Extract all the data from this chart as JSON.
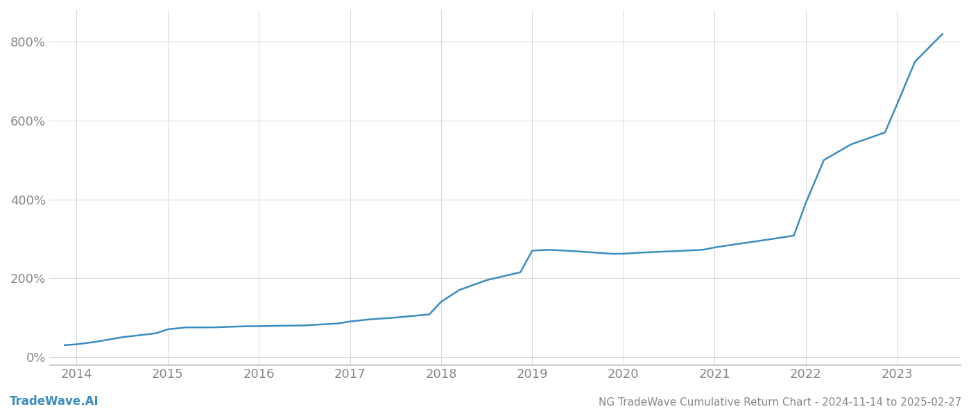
{
  "title": "NG TradeWave Cumulative Return Chart - 2024-11-14 to 2025-02-27",
  "watermark": "TradeWave.AI",
  "line_color": "#3a8cc1",
  "background_color": "#ffffff",
  "grid_color": "#cccccc",
  "x_values": [
    2013.87,
    2014.0,
    2014.2,
    2014.5,
    2014.87,
    2015.0,
    2015.2,
    2015.5,
    2015.87,
    2016.0,
    2016.2,
    2016.5,
    2016.87,
    2017.0,
    2017.2,
    2017.5,
    2017.87,
    2018.0,
    2018.2,
    2018.5,
    2018.87,
    2019.0,
    2019.2,
    2019.5,
    2019.87,
    2020.0,
    2020.2,
    2020.5,
    2020.87,
    2021.0,
    2021.2,
    2021.5,
    2021.87,
    2022.0,
    2022.2,
    2022.5,
    2022.87,
    2023.0,
    2023.2,
    2023.5
  ],
  "y_values": [
    30,
    32,
    38,
    50,
    60,
    70,
    75,
    75,
    78,
    78,
    79,
    80,
    85,
    90,
    95,
    100,
    108,
    140,
    170,
    195,
    215,
    270,
    272,
    268,
    262,
    262,
    265,
    268,
    272,
    278,
    285,
    295,
    308,
    390,
    500,
    540,
    570,
    640,
    750,
    820
  ],
  "xlim": [
    2013.7,
    2023.7
  ],
  "ylim": [
    -20,
    880
  ],
  "yticks": [
    0,
    200,
    400,
    600,
    800
  ],
  "xticks": [
    2014,
    2015,
    2016,
    2017,
    2018,
    2019,
    2020,
    2021,
    2022,
    2023
  ],
  "line_width": 1.8,
  "title_fontsize": 11,
  "tick_fontsize": 13,
  "watermark_fontsize": 12,
  "axis_color": "#888888",
  "tick_color": "#888888"
}
